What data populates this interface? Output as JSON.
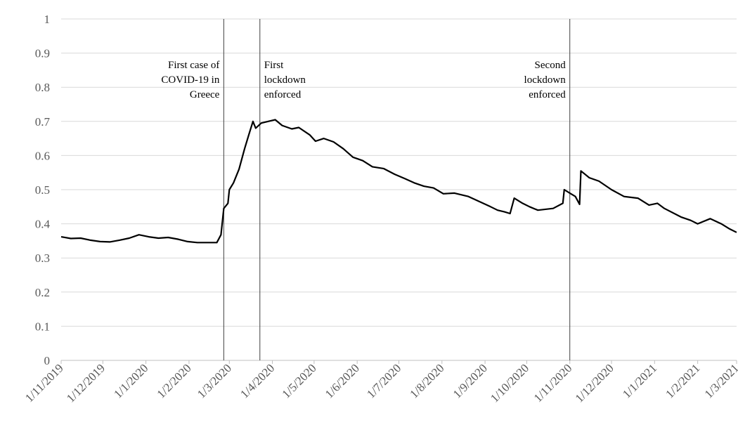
{
  "chart_data": {
    "type": "line",
    "color": "#000000",
    "grid": true,
    "xlim": [
      "2019-11-01",
      "2021-03-01"
    ],
    "xticks": [
      {
        "value": "2019-11-01",
        "label": "1/11/2019"
      },
      {
        "value": "2019-12-01",
        "label": "1/12/2019"
      },
      {
        "value": "2020-01-01",
        "label": "1/1/2020"
      },
      {
        "value": "2020-02-01",
        "label": "1/2/2020"
      },
      {
        "value": "2020-03-01",
        "label": "1/3/2020"
      },
      {
        "value": "2020-04-01",
        "label": "1/4/2020"
      },
      {
        "value": "2020-05-01",
        "label": "1/5/2020"
      },
      {
        "value": "2020-06-01",
        "label": "1/6/2020"
      },
      {
        "value": "2020-07-01",
        "label": "1/7/2020"
      },
      {
        "value": "2020-08-01",
        "label": "1/8/2020"
      },
      {
        "value": "2020-09-01",
        "label": "1/9/2020"
      },
      {
        "value": "2020-10-01",
        "label": "1/10/2020"
      },
      {
        "value": "2020-11-01",
        "label": "1/11/2020"
      },
      {
        "value": "2020-12-01",
        "label": "1/12/2020"
      },
      {
        "value": "2021-01-01",
        "label": "1/1/2021"
      },
      {
        "value": "2021-02-01",
        "label": "1/2/2021"
      },
      {
        "value": "2021-03-01",
        "label": "1/3/2021"
      }
    ],
    "ylim": [
      0,
      1
    ],
    "yticks": [
      0,
      0.1,
      0.2,
      0.3,
      0.4,
      0.5,
      0.6,
      0.7,
      0.8,
      0.9,
      1
    ],
    "annotations": [
      {
        "date": "2020-02-26",
        "anchor": "end",
        "lines": [
          "First case of",
          "COVID-19 in",
          "Greece"
        ]
      },
      {
        "date": "2020-03-23",
        "anchor": "start",
        "lines": [
          "First",
          "lockdown",
          "enforced"
        ]
      },
      {
        "date": "2020-11-01",
        "anchor": "end",
        "lines": [
          "Second",
          "lockdown",
          "enforced"
        ]
      }
    ],
    "x": [
      "2019-11-01",
      "2019-11-08",
      "2019-11-15",
      "2019-11-22",
      "2019-11-29",
      "2019-12-06",
      "2019-12-13",
      "2019-12-20",
      "2019-12-27",
      "2020-01-03",
      "2020-01-10",
      "2020-01-17",
      "2020-01-24",
      "2020-01-31",
      "2020-02-07",
      "2020-02-14",
      "2020-02-21",
      "2020-02-24",
      "2020-02-26",
      "2020-02-29",
      "2020-03-01",
      "2020-03-04",
      "2020-03-08",
      "2020-03-12",
      "2020-03-15",
      "2020-03-18",
      "2020-03-20",
      "2020-03-24",
      "2020-03-29",
      "2020-04-03",
      "2020-04-08",
      "2020-04-15",
      "2020-04-20",
      "2020-04-28",
      "2020-05-02",
      "2020-05-08",
      "2020-05-15",
      "2020-05-22",
      "2020-05-29",
      "2020-06-05",
      "2020-06-12",
      "2020-06-20",
      "2020-06-28",
      "2020-07-05",
      "2020-07-12",
      "2020-07-19",
      "2020-07-26",
      "2020-08-02",
      "2020-08-10",
      "2020-08-20",
      "2020-08-28",
      "2020-09-05",
      "2020-09-10",
      "2020-09-15",
      "2020-09-19",
      "2020-09-22",
      "2020-09-28",
      "2020-10-03",
      "2020-10-09",
      "2020-10-20",
      "2020-10-27",
      "2020-10-28",
      "2020-11-01",
      "2020-11-05",
      "2020-11-08",
      "2020-11-09",
      "2020-11-15",
      "2020-11-22",
      "2020-12-01",
      "2020-12-10",
      "2020-12-20",
      "2020-12-28",
      "2021-01-03",
      "2021-01-08",
      "2021-01-20",
      "2021-01-27",
      "2021-02-01",
      "2021-02-10",
      "2021-02-18",
      "2021-02-24",
      "2021-03-01"
    ],
    "values": [
      0.362,
      0.357,
      0.358,
      0.352,
      0.348,
      0.347,
      0.352,
      0.358,
      0.368,
      0.362,
      0.358,
      0.36,
      0.355,
      0.348,
      0.345,
      0.345,
      0.345,
      0.368,
      0.445,
      0.46,
      0.5,
      0.52,
      0.56,
      0.62,
      0.66,
      0.7,
      0.68,
      0.695,
      0.7,
      0.705,
      0.688,
      0.678,
      0.682,
      0.66,
      0.642,
      0.65,
      0.64,
      0.62,
      0.595,
      0.585,
      0.567,
      0.562,
      0.545,
      0.533,
      0.52,
      0.51,
      0.505,
      0.488,
      0.49,
      0.48,
      0.465,
      0.45,
      0.44,
      0.435,
      0.43,
      0.475,
      0.46,
      0.45,
      0.44,
      0.445,
      0.46,
      0.5,
      0.49,
      0.48,
      0.457,
      0.555,
      0.535,
      0.525,
      0.5,
      0.48,
      0.475,
      0.455,
      0.46,
      0.445,
      0.42,
      0.41,
      0.4,
      0.415,
      0.4,
      0.385,
      0.375
    ]
  }
}
